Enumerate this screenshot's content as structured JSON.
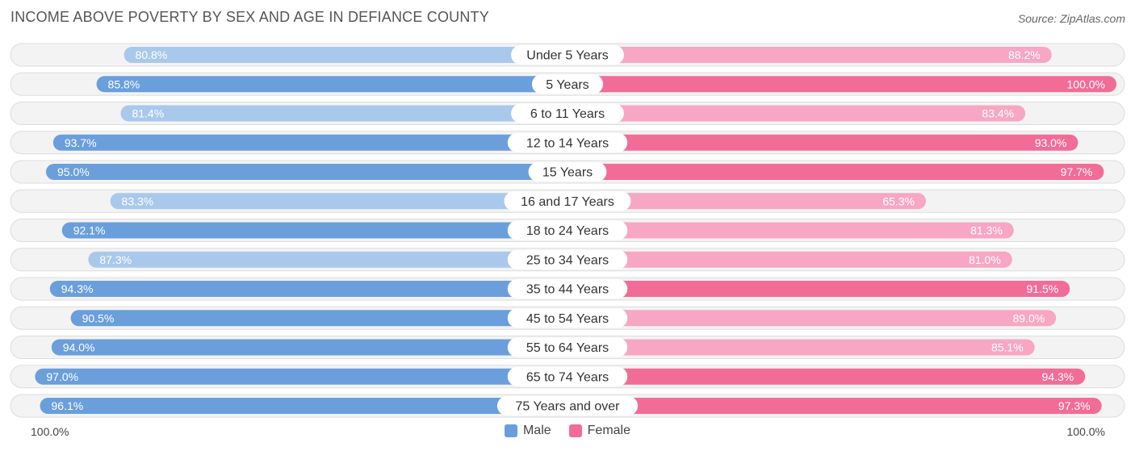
{
  "title": "INCOME ABOVE POVERTY BY SEX AND AGE IN DEFIANCE COUNTY",
  "source": "Source: ZipAtlas.com",
  "axis": {
    "left_label": "100.0%",
    "right_label": "100.0%"
  },
  "legend": {
    "male": "Male",
    "female": "Female"
  },
  "colors": {
    "male_strong": "#6a9fdc",
    "male_light": "#a9c9ec",
    "female_strong": "#f26c98",
    "female_light": "#f7a7c3",
    "track": "#efefef"
  },
  "chart_data": {
    "type": "bar",
    "orientation": "diverging-horizontal",
    "title": "INCOME ABOVE POVERTY BY SEX AND AGE IN DEFIANCE COUNTY",
    "categories": [
      "Under 5 Years",
      "5 Years",
      "6 to 11 Years",
      "12 to 14 Years",
      "15 Years",
      "16 and 17 Years",
      "18 to 24 Years",
      "25 to 34 Years",
      "35 to 44 Years",
      "45 to 54 Years",
      "55 to 64 Years",
      "65 to 74 Years",
      "75 Years and over"
    ],
    "series": [
      {
        "name": "Male",
        "values": [
          80.8,
          85.8,
          81.4,
          93.7,
          95.0,
          83.3,
          92.1,
          87.3,
          94.3,
          90.5,
          94.0,
          97.0,
          96.1
        ],
        "labels": [
          "80.8%",
          "85.8%",
          "81.4%",
          "93.7%",
          "95.0%",
          "83.3%",
          "92.1%",
          "87.3%",
          "94.3%",
          "90.5%",
          "94.0%",
          "97.0%",
          "96.1%"
        ]
      },
      {
        "name": "Female",
        "values": [
          88.2,
          100.0,
          83.4,
          93.0,
          97.7,
          65.3,
          81.3,
          81.0,
          91.5,
          89.0,
          85.1,
          94.3,
          97.3
        ],
        "labels": [
          "88.2%",
          "100.0%",
          "83.4%",
          "93.0%",
          "97.7%",
          "65.3%",
          "81.3%",
          "81.0%",
          "91.5%",
          "89.0%",
          "85.1%",
          "94.3%",
          "97.3%"
        ]
      }
    ],
    "xlim": [
      0,
      100
    ],
    "legend_position": "bottom-center"
  }
}
